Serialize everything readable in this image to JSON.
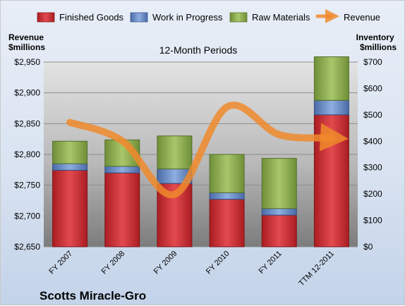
{
  "chart_data": {
    "type": "bar",
    "title": "12-Month Periods",
    "company": "Scotts Miracle-Gro",
    "left_axis": {
      "label": "Revenue\n$millions",
      "range": [
        2650,
        2950
      ],
      "step": 50,
      "ticks": [
        "$2,650",
        "$2,700",
        "$2,750",
        "$2,800",
        "$2,850",
        "$2,900",
        "$2,950"
      ]
    },
    "right_axis": {
      "label": "Inventory\n$millions",
      "range": [
        0,
        700
      ],
      "step": 100,
      "ticks": [
        "$0",
        "$100",
        "$200",
        "$300",
        "$400",
        "$500",
        "$600",
        "$700"
      ]
    },
    "categories": [
      "FY 2007",
      "FY 2008",
      "FY 2009",
      "FY 2010",
      "FY 2011",
      "TTM 12-2011"
    ],
    "stacked": true,
    "series": [
      {
        "name": "Finished Goods",
        "axis": "right",
        "color": "#c0262b",
        "values": [
          290,
          280,
          240,
          180,
          120,
          500
        ]
      },
      {
        "name": "Work in Progress",
        "axis": "right",
        "color": "#5a7fbd",
        "values": [
          25,
          25,
          55,
          25,
          25,
          55
        ]
      },
      {
        "name": "Raw Materials",
        "axis": "right",
        "color": "#86a648",
        "values": [
          85,
          100,
          125,
          145,
          190,
          165
        ]
      }
    ],
    "line": {
      "name": "Revenue",
      "axis": "left",
      "color": "#f08a2c",
      "values": [
        2852,
        2822,
        2735,
        2877,
        2832,
        2827
      ]
    },
    "grid": true,
    "legend_position": "top"
  }
}
